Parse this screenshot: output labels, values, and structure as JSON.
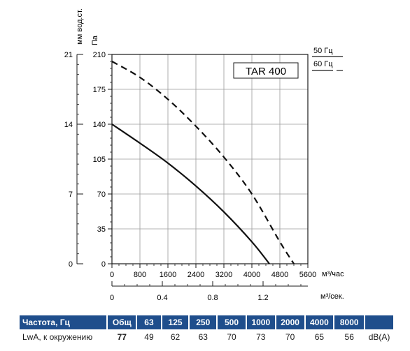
{
  "chart_data": {
    "type": "line",
    "left_axis": {
      "label": "мм вод.ст.",
      "ticks": [
        "0",
        "7",
        "14",
        "21"
      ]
    },
    "pressure_axis": {
      "label": "Па",
      "ticks": [
        "0",
        "35",
        "70",
        "105",
        "140",
        "175",
        "210"
      ],
      "ylim": [
        0,
        210
      ]
    },
    "x_axis_hour": {
      "label": "м³/час",
      "ticks": [
        "0",
        "800",
        "1600",
        "2400",
        "3200",
        "4000",
        "4800",
        "5600"
      ],
      "xlim": [
        0,
        5600
      ]
    },
    "x_axis_sec": {
      "label": "м³/сек.",
      "ticks": [
        "0",
        "0.4",
        "0.8",
        "1.2"
      ]
    },
    "legend": [
      {
        "label": "50 Гц",
        "style": "solid"
      },
      {
        "label": "60 Гц",
        "style": "dashed"
      }
    ],
    "model_label": "TAR 400",
    "grid": true,
    "series": [
      {
        "name": "50 Гц",
        "style": "solid",
        "points": [
          [
            0,
            140
          ],
          [
            800,
            121
          ],
          [
            1600,
            101
          ],
          [
            2400,
            78
          ],
          [
            3200,
            52
          ],
          [
            4000,
            22
          ],
          [
            4500,
            0
          ]
        ]
      },
      {
        "name": "60 Гц",
        "style": "dashed",
        "points": [
          [
            0,
            203
          ],
          [
            800,
            187
          ],
          [
            1600,
            165
          ],
          [
            2400,
            138
          ],
          [
            3200,
            107
          ],
          [
            4000,
            70
          ],
          [
            4800,
            22
          ],
          [
            5200,
            0
          ]
        ]
      }
    ]
  },
  "sound_table": {
    "header": [
      "Частота, Гц",
      "Общ",
      "63",
      "125",
      "250",
      "500",
      "1000",
      "2000",
      "4000",
      "8000",
      ""
    ],
    "row": [
      "LwA, к окружению",
      "77",
      "49",
      "62",
      "63",
      "70",
      "73",
      "70",
      "65",
      "56",
      "dB(A)"
    ]
  }
}
